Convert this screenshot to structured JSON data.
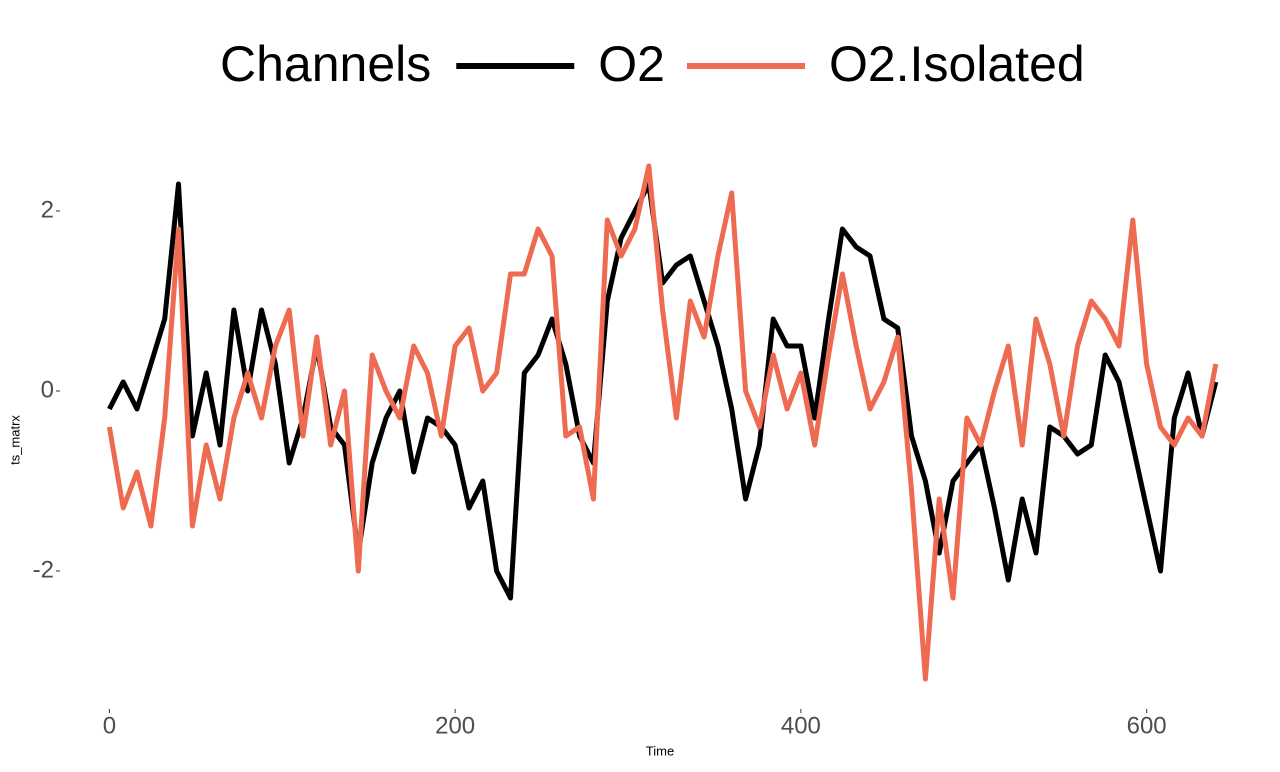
{
  "chart_data": {
    "type": "line",
    "legend_title": "Channels",
    "legend_position": "top",
    "x_label": "Time",
    "y_label": "ts_matrx",
    "x": [
      0,
      8,
      16,
      24,
      32,
      40,
      48,
      56,
      64,
      72,
      80,
      88,
      96,
      104,
      112,
      120,
      128,
      136,
      144,
      152,
      160,
      168,
      176,
      184,
      192,
      200,
      208,
      216,
      224,
      232,
      240,
      248,
      256,
      264,
      272,
      280,
      288,
      296,
      304,
      312,
      320,
      328,
      336,
      344,
      352,
      360,
      368,
      376,
      384,
      392,
      400,
      408,
      416,
      424,
      432,
      440,
      448,
      456,
      464,
      472,
      480,
      488,
      496,
      504,
      512,
      520,
      528,
      536,
      544,
      552,
      560,
      568,
      576,
      584,
      592,
      600,
      608,
      616,
      624,
      632,
      640
    ],
    "series": [
      {
        "name": "O2",
        "color": "#000000",
        "values": [
          -0.2,
          0.1,
          -0.2,
          0.3,
          0.8,
          2.3,
          -0.5,
          0.2,
          -0.6,
          0.9,
          0.0,
          0.9,
          0.3,
          -0.8,
          -0.3,
          0.5,
          -0.4,
          -0.6,
          -1.8,
          -0.8,
          -0.3,
          0.0,
          -0.9,
          -0.3,
          -0.4,
          -0.6,
          -1.3,
          -1.0,
          -2.0,
          -2.3,
          0.2,
          0.4,
          0.8,
          0.3,
          -0.5,
          -0.8,
          1.0,
          1.7,
          2.0,
          2.3,
          1.2,
          1.4,
          1.5,
          1.0,
          0.5,
          -0.2,
          -1.2,
          -0.6,
          0.8,
          0.5,
          0.5,
          -0.3,
          0.8,
          1.8,
          1.6,
          1.5,
          0.8,
          0.7,
          -0.5,
          -1.0,
          -1.8,
          -1.0,
          -0.8,
          -0.6,
          -1.3,
          -2.1,
          -1.2,
          -1.8,
          -0.4,
          -0.5,
          -0.7,
          -0.6,
          0.4,
          0.1,
          -0.6,
          -1.3,
          -2.0,
          -0.3,
          0.2,
          -0.5,
          0.1
        ]
      },
      {
        "name": "O2.Isolated",
        "color": "#ee6a50",
        "values": [
          -0.4,
          -1.3,
          -0.9,
          -1.5,
          -0.3,
          1.8,
          -1.5,
          -0.6,
          -1.2,
          -0.3,
          0.2,
          -0.3,
          0.5,
          0.9,
          -0.5,
          0.6,
          -0.6,
          0.0,
          -2.0,
          0.4,
          0.0,
          -0.3,
          0.5,
          0.2,
          -0.5,
          0.5,
          0.7,
          0.0,
          0.2,
          1.3,
          1.3,
          1.8,
          1.5,
          -0.5,
          -0.4,
          -1.2,
          1.9,
          1.5,
          1.8,
          2.5,
          0.9,
          -0.3,
          1.0,
          0.6,
          1.5,
          2.2,
          0.0,
          -0.4,
          0.4,
          -0.2,
          0.2,
          -0.6,
          0.4,
          1.3,
          0.5,
          -0.2,
          0.1,
          0.6,
          -1.1,
          -3.2,
          -1.2,
          -2.3,
          -0.3,
          -0.6,
          0.0,
          0.5,
          -0.6,
          0.8,
          0.3,
          -0.5,
          0.5,
          1.0,
          0.8,
          0.5,
          1.9,
          0.3,
          -0.4,
          -0.6,
          -0.3,
          -0.5,
          0.3
        ]
      }
    ],
    "xlim": [
      -17,
      654
    ],
    "xticks": [
      0,
      200,
      400,
      600
    ],
    "ylim": [
      -3.6,
      2.9
    ],
    "yticks": [
      -2,
      0,
      2
    ]
  }
}
